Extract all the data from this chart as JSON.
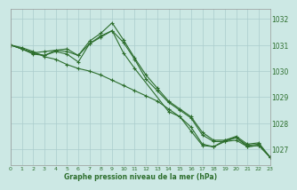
{
  "title": "Graphe pression niveau de la mer (hPa)",
  "background_color": "#cce8e4",
  "grid_color": "#aacccc",
  "line_color": "#2d6e2d",
  "xlim": [
    0,
    23
  ],
  "ylim": [
    1026.4,
    1032.4
  ],
  "yticks": [
    1027,
    1028,
    1029,
    1030,
    1031,
    1032
  ],
  "xticks": [
    0,
    1,
    2,
    3,
    4,
    5,
    6,
    7,
    8,
    9,
    10,
    11,
    12,
    13,
    14,
    15,
    16,
    17,
    18,
    19,
    20,
    21,
    22,
    23
  ],
  "series": [
    {
      "comment": "line1 - fairly straight decline, no big bump",
      "x": [
        0,
        1,
        2,
        3,
        4,
        5,
        6,
        7,
        8,
        9,
        10,
        11,
        12,
        13,
        14,
        15,
        16,
        17,
        18,
        19,
        20,
        21,
        22,
        23
      ],
      "y": [
        1031.0,
        1030.9,
        1030.75,
        1030.55,
        1030.45,
        1030.25,
        1030.1,
        1030.0,
        1029.85,
        1029.65,
        1029.45,
        1029.25,
        1029.05,
        1028.85,
        1028.55,
        1028.25,
        1027.85,
        1027.2,
        1027.1,
        1027.3,
        1027.35,
        1027.1,
        1027.15,
        1026.7
      ]
    },
    {
      "comment": "line2 - slight dip then recovery with peak at 9",
      "x": [
        0,
        1,
        2,
        3,
        4,
        5,
        6,
        7,
        8,
        9,
        10,
        11,
        12,
        13,
        14,
        15,
        16,
        17,
        18,
        19,
        20,
        21,
        22,
        23
      ],
      "y": [
        1031.0,
        1030.85,
        1030.7,
        1030.75,
        1030.8,
        1030.75,
        1030.6,
        1031.05,
        1031.3,
        1031.55,
        1031.1,
        1030.45,
        1029.7,
        1029.25,
        1028.8,
        1028.5,
        1028.2,
        1027.55,
        1027.3,
        1027.3,
        1027.45,
        1027.1,
        1027.15,
        1026.7
      ]
    },
    {
      "comment": "line3 - peak at hour 9 ~1031.85",
      "x": [
        0,
        1,
        2,
        3,
        4,
        5,
        6,
        7,
        8,
        9,
        10,
        11,
        12,
        13,
        14,
        15,
        16,
        17,
        18,
        19,
        20,
        21,
        22,
        23
      ],
      "y": [
        1031.0,
        1030.85,
        1030.7,
        1030.6,
        1030.8,
        1030.85,
        1030.6,
        1031.15,
        1031.45,
        1031.85,
        1031.2,
        1030.5,
        1029.85,
        1029.35,
        1028.85,
        1028.55,
        1028.25,
        1027.65,
        1027.35,
        1027.35,
        1027.5,
        1027.2,
        1027.25,
        1026.7
      ]
    },
    {
      "comment": "line4 - sparse points, dip at 2-3, recovery, then decline",
      "x": [
        0,
        1,
        2,
        3,
        4,
        5,
        6,
        7,
        8,
        9,
        10,
        11,
        14,
        15,
        16,
        17,
        18,
        19,
        20,
        21,
        22,
        23
      ],
      "y": [
        1031.0,
        1030.85,
        1030.65,
        1030.6,
        1030.75,
        1030.65,
        1030.35,
        1031.05,
        1031.35,
        1031.55,
        1030.7,
        1030.1,
        1028.45,
        1028.25,
        1027.7,
        1027.15,
        1027.1,
        1027.35,
        1027.45,
        1027.15,
        1027.2,
        1026.7
      ]
    }
  ]
}
